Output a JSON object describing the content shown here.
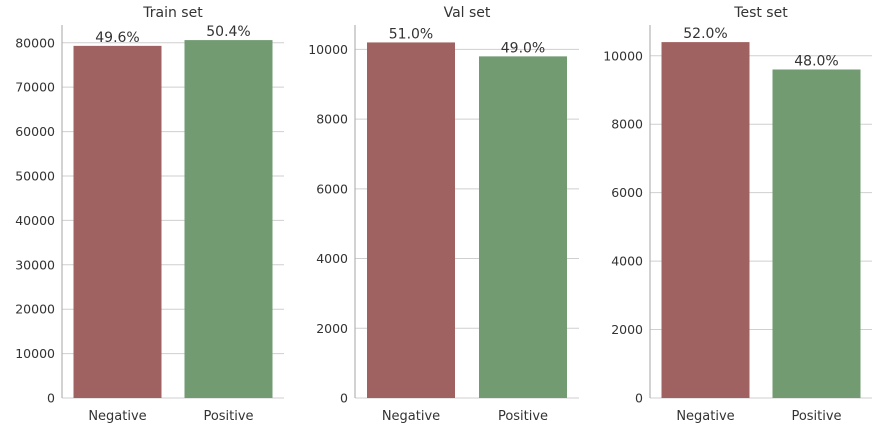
{
  "chart_data": [
    {
      "type": "bar",
      "title": "Train set",
      "categories": [
        "Negative",
        "Positive"
      ],
      "values": [
        79300,
        80600
      ],
      "labels": [
        "49.6%",
        "50.4%"
      ],
      "yticks": [
        0,
        10000,
        20000,
        30000,
        40000,
        50000,
        60000,
        70000,
        80000
      ],
      "ylim": [
        0,
        84000
      ],
      "grid": true,
      "colors": [
        "#a06260",
        "#729b72"
      ]
    },
    {
      "type": "bar",
      "title": "Val set",
      "categories": [
        "Negative",
        "Positive"
      ],
      "values": [
        10200,
        9800
      ],
      "labels": [
        "51.0%",
        "49.0%"
      ],
      "yticks": [
        0,
        2000,
        4000,
        6000,
        8000,
        10000
      ],
      "ylim": [
        0,
        10700
      ],
      "grid": true,
      "colors": [
        "#a06260",
        "#729b72"
      ]
    },
    {
      "type": "bar",
      "title": "Test set",
      "categories": [
        "Negative",
        "Positive"
      ],
      "values": [
        10400,
        9600
      ],
      "labels": [
        "52.0%",
        "48.0%"
      ],
      "yticks": [
        0,
        2000,
        4000,
        6000,
        8000,
        10000
      ],
      "ylim": [
        0,
        10900
      ],
      "grid": true,
      "colors": [
        "#a06260",
        "#729b72"
      ]
    }
  ]
}
